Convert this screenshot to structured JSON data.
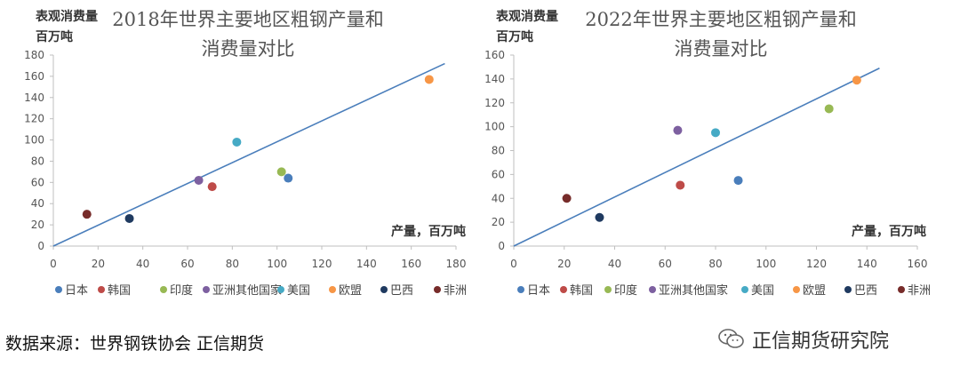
{
  "footer": {
    "source_text": "数据来源：世界钢铁协会  正信期货",
    "brand_name": "正信期货研究院",
    "brand_icon": "wechat-icon"
  },
  "chart_data": [
    {
      "type": "scatter",
      "title_lines": [
        "2018年世界主要地区粗钢产量和",
        "消费量对比"
      ],
      "xlabel": "产量，百万吨",
      "ylabel_lines": [
        "表观消费量",
        "百万吨"
      ],
      "xlim": [
        0,
        180
      ],
      "ylim": [
        0,
        180
      ],
      "xticks": [
        0,
        20,
        40,
        60,
        80,
        100,
        120,
        140,
        160,
        180
      ],
      "yticks": [
        0,
        20,
        40,
        60,
        80,
        100,
        120,
        140,
        160,
        180
      ],
      "grid": false,
      "legend_position": "bottom",
      "reference_line": {
        "x": [
          0,
          175
        ],
        "y": [
          0,
          172
        ]
      },
      "series": [
        {
          "name": "日本",
          "color": "#4a7ebb",
          "x": 105,
          "y": 64
        },
        {
          "name": "韩国",
          "color": "#be4b48",
          "x": 71,
          "y": 56
        },
        {
          "name": "印度",
          "color": "#98b954",
          "x": 102,
          "y": 70
        },
        {
          "name": "亚洲其他国家",
          "color": "#7d60a0",
          "x": 65,
          "y": 62
        },
        {
          "name": "美国",
          "color": "#46aac5",
          "x": 82,
          "y": 98
        },
        {
          "name": "欧盟",
          "color": "#f79646",
          "x": 168,
          "y": 157
        },
        {
          "name": "巴西",
          "color": "#1f3a60",
          "x": 34,
          "y": 26
        },
        {
          "name": "非洲",
          "color": "#772c2a",
          "x": 15,
          "y": 30
        }
      ]
    },
    {
      "type": "scatter",
      "title_lines": [
        "2022年世界主要地区粗钢产量和",
        "消费量对比"
      ],
      "xlabel": "产量，百万吨",
      "ylabel_lines": [
        "表观消费量",
        "百万吨"
      ],
      "xlim": [
        0,
        160
      ],
      "ylim": [
        0,
        160
      ],
      "xticks": [
        0,
        20,
        40,
        60,
        80,
        100,
        120,
        140,
        160
      ],
      "yticks": [
        0,
        20,
        40,
        60,
        80,
        100,
        120,
        140,
        160
      ],
      "grid": false,
      "legend_position": "bottom",
      "reference_line": {
        "x": [
          0,
          145
        ],
        "y": [
          0,
          149
        ]
      },
      "series": [
        {
          "name": "日本",
          "color": "#4a7ebb",
          "x": 89,
          "y": 55
        },
        {
          "name": "韩国",
          "color": "#be4b48",
          "x": 66,
          "y": 51
        },
        {
          "name": "印度",
          "color": "#98b954",
          "x": 125,
          "y": 115
        },
        {
          "name": "亚洲其他国家",
          "color": "#7d60a0",
          "x": 65,
          "y": 97
        },
        {
          "name": "美国",
          "color": "#46aac5",
          "x": 80,
          "y": 95
        },
        {
          "name": "欧盟",
          "color": "#f79646",
          "x": 136,
          "y": 139
        },
        {
          "name": "巴西",
          "color": "#1f3a60",
          "x": 34,
          "y": 24
        },
        {
          "name": "非洲",
          "color": "#772c2a",
          "x": 21,
          "y": 40
        }
      ]
    }
  ]
}
